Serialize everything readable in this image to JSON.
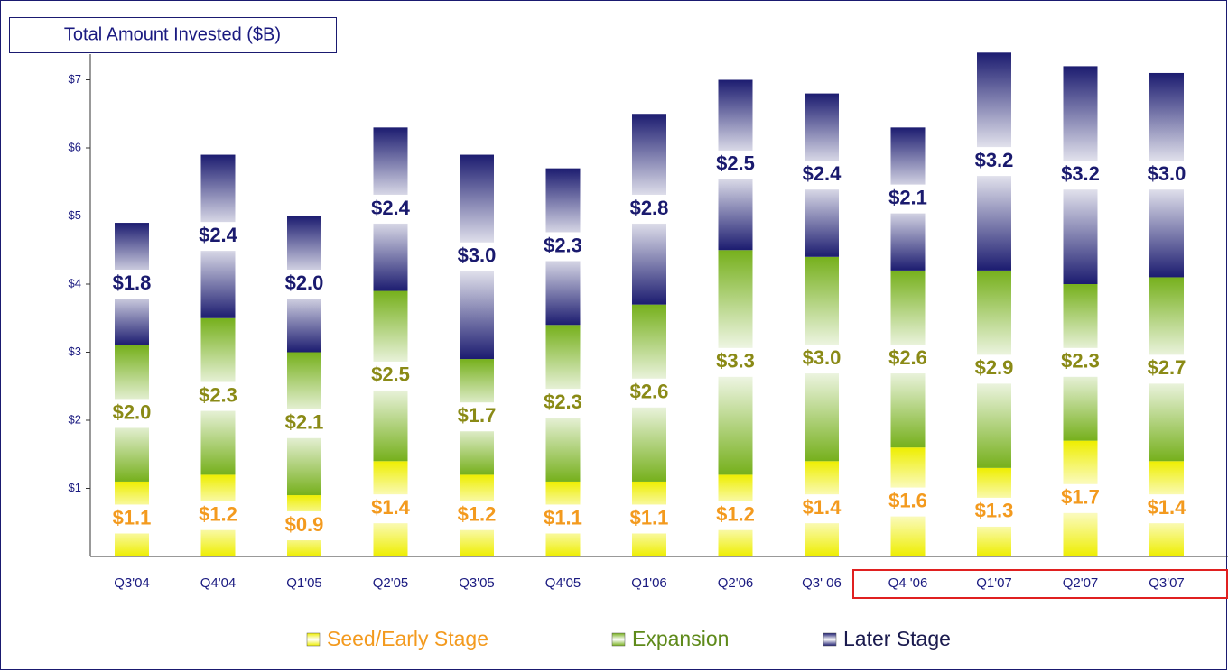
{
  "chart_data": {
    "type": "stacked_bar",
    "title": "Total Amount Invested ($B)",
    "categories": [
      "Q3'04",
      "Q4'04",
      "Q1'05",
      "Q2'05",
      "Q3'05",
      "Q4'05",
      "Q1'06",
      "Q2'06",
      "Q3' 06",
      "Q4 '06",
      "Q1'07",
      "Q2'07",
      "Q3'07"
    ],
    "series": [
      {
        "name": "Seed/Early Stage",
        "color": "#eeee00",
        "values": [
          1.1,
          1.2,
          0.9,
          1.4,
          1.2,
          1.1,
          1.1,
          1.2,
          1.4,
          1.6,
          1.3,
          1.7,
          1.4
        ],
        "value_labels": [
          "$1.1",
          "$1.2",
          "$0.9",
          "$1.4",
          "$1.2",
          "$1.1",
          "$1.1",
          "$1.2",
          "$1.4",
          "$1.6",
          "$1.3",
          "$1.7",
          "$1.4"
        ]
      },
      {
        "name": "Expansion",
        "color": "#76b01c",
        "values": [
          2.0,
          2.3,
          2.1,
          2.5,
          1.7,
          2.3,
          2.6,
          3.3,
          3.0,
          2.6,
          2.9,
          2.3,
          2.7
        ],
        "value_labels": [
          "$2.0",
          "$2.3",
          "$2.1",
          "$2.5",
          "$1.7",
          "$2.3",
          "$2.6",
          "$3.3",
          "$3.0",
          "$2.6",
          "$2.9",
          "$2.3",
          "$2.7"
        ]
      },
      {
        "name": "Later Stage",
        "color": "#1c1c70",
        "values": [
          1.8,
          2.4,
          2.0,
          2.4,
          3.0,
          2.3,
          2.8,
          2.5,
          2.4,
          2.1,
          3.2,
          3.2,
          3.0
        ],
        "value_labels": [
          "$1.8",
          "$2.4",
          "$2.0",
          "$2.4",
          "$3.0",
          "$2.3",
          "$2.8",
          "$2.5",
          "$2.4",
          "$2.1",
          "$3.2",
          "$3.2",
          "$3.0"
        ]
      }
    ],
    "ylim": [
      0,
      7.5
    ],
    "yticks": [
      {
        "value": 1,
        "label": "$1"
      },
      {
        "value": 2,
        "label": "$2"
      },
      {
        "value": 3,
        "label": "$3"
      },
      {
        "value": 4,
        "label": "$4"
      },
      {
        "value": 5,
        "label": "$5"
      },
      {
        "value": 6,
        "label": "$6"
      },
      {
        "value": 7,
        "label": "$7"
      }
    ],
    "legend": "bottom"
  }
}
